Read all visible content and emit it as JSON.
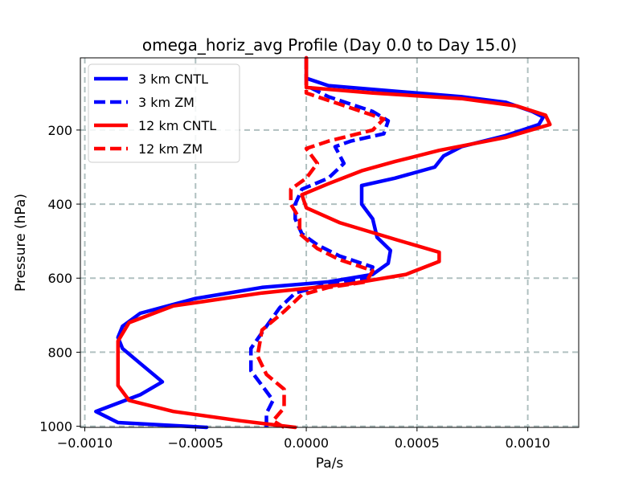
{
  "chart_data": {
    "type": "line",
    "title": "omega_horiz_avg Profile (Day 0.0 to Day 15.0)",
    "xlabel": "Pa/s",
    "ylabel": "Pressure (hPa)",
    "xlim": [
      -0.00102,
      0.00123
    ],
    "ylim": [
      1003,
      5
    ],
    "y_inverted": true,
    "grid": true,
    "legend_position": "top-left",
    "x_ticks": [
      -0.001,
      -0.0005,
      0.0,
      0.0005,
      0.001
    ],
    "x_tick_labels": [
      "−0.0010",
      "−0.0005",
      "0.0000",
      "0.0005",
      "0.0010"
    ],
    "y_ticks": [
      200,
      400,
      600,
      800,
      1000
    ],
    "y_tick_labels": [
      "200",
      "400",
      "600",
      "800",
      "1000"
    ],
    "series": [
      {
        "name": "3 km CNTL",
        "color": "#0000ff",
        "dash": "solid",
        "points": [
          [
            0.0,
            5
          ],
          [
            0.0,
            60
          ],
          [
            0.0001,
            80
          ],
          [
            0.0003,
            90
          ],
          [
            0.0007,
            110
          ],
          [
            0.0009,
            125
          ],
          [
            0.00102,
            150
          ],
          [
            0.00107,
            165
          ],
          [
            0.00105,
            185
          ],
          [
            0.0009,
            215
          ],
          [
            0.0007,
            245
          ],
          [
            0.00062,
            270
          ],
          [
            0.00058,
            300
          ],
          [
            0.0004,
            330
          ],
          [
            0.00025,
            350
          ],
          [
            0.00025,
            400
          ],
          [
            0.0003,
            440
          ],
          [
            0.00032,
            490
          ],
          [
            0.00038,
            525
          ],
          [
            0.00037,
            560
          ],
          [
            0.0003,
            590
          ],
          [
            0.0001,
            610
          ],
          [
            -0.0002,
            625
          ],
          [
            -0.0005,
            655
          ],
          [
            -0.00075,
            695
          ],
          [
            -0.00083,
            730
          ],
          [
            -0.00085,
            760
          ],
          [
            -0.00083,
            790
          ],
          [
            -0.00075,
            830
          ],
          [
            -0.00065,
            880
          ],
          [
            -0.00075,
            915
          ],
          [
            -0.00095,
            960
          ],
          [
            -0.00085,
            990
          ],
          [
            -0.00045,
            1003
          ]
        ]
      },
      {
        "name": "3 km ZM",
        "color": "#0000ff",
        "dash": "dashed",
        "points": [
          [
            0.0,
            5
          ],
          [
            0.0,
            80
          ],
          [
            0.0001,
            110
          ],
          [
            0.0002,
            130
          ],
          [
            0.0003,
            150
          ],
          [
            0.00037,
            175
          ],
          [
            0.00035,
            210
          ],
          [
            0.0002,
            230
          ],
          [
            0.00013,
            245
          ],
          [
            0.00017,
            290
          ],
          [
            0.0001,
            330
          ],
          [
            -2e-05,
            360
          ],
          [
            -5e-05,
            400
          ],
          [
            -5e-05,
            440
          ],
          [
            -2e-05,
            480
          ],
          [
            5e-05,
            510
          ],
          [
            0.00015,
            540
          ],
          [
            0.0003,
            570
          ],
          [
            0.00028,
            600
          ],
          [
            0.0001,
            615
          ],
          [
            -5e-05,
            640
          ],
          [
            -0.00012,
            680
          ],
          [
            -0.00018,
            730
          ],
          [
            -0.00025,
            790
          ],
          [
            -0.00025,
            850
          ],
          [
            -0.0002,
            890
          ],
          [
            -0.00015,
            930
          ],
          [
            -0.00018,
            965
          ],
          [
            -0.00018,
            1003
          ]
        ]
      },
      {
        "name": "12 km CNTL",
        "color": "#ff0000",
        "dash": "solid",
        "points": [
          [
            0.0,
            5
          ],
          [
            0.0,
            85
          ],
          [
            0.0003,
            100
          ],
          [
            0.0007,
            115
          ],
          [
            0.00095,
            135
          ],
          [
            0.00108,
            160
          ],
          [
            0.0011,
            185
          ],
          [
            0.0009,
            220
          ],
          [
            0.0006,
            255
          ],
          [
            0.0004,
            285
          ],
          [
            0.00025,
            310
          ],
          [
            0.0001,
            345
          ],
          [
            -2e-05,
            375
          ],
          [
            0.0,
            410
          ],
          [
            0.00015,
            450
          ],
          [
            0.0004,
            495
          ],
          [
            0.0006,
            530
          ],
          [
            0.0006,
            555
          ],
          [
            0.00045,
            590
          ],
          [
            0.0002,
            615
          ],
          [
            -0.0002,
            640
          ],
          [
            -0.0006,
            675
          ],
          [
            -0.0008,
            720
          ],
          [
            -0.00085,
            770
          ],
          [
            -0.00085,
            840
          ],
          [
            -0.00085,
            890
          ],
          [
            -0.0008,
            930
          ],
          [
            -0.0006,
            960
          ],
          [
            -0.0003,
            985
          ],
          [
            -5e-05,
            1003
          ]
        ]
      },
      {
        "name": "12 km ZM",
        "color": "#ff0000",
        "dash": "dashed",
        "points": [
          [
            0.0,
            5
          ],
          [
            0.0,
            100
          ],
          [
            0.0001,
            120
          ],
          [
            0.0002,
            140
          ],
          [
            0.00035,
            170
          ],
          [
            0.0003,
            200
          ],
          [
            0.0001,
            230
          ],
          [
            0.0,
            250
          ],
          [
            5e-05,
            290
          ],
          [
            0.0,
            330
          ],
          [
            -7e-05,
            360
          ],
          [
            -7e-05,
            400
          ],
          [
            -3e-05,
            440
          ],
          [
            -3e-05,
            480
          ],
          [
            5e-05,
            520
          ],
          [
            0.00015,
            550
          ],
          [
            0.0003,
            580
          ],
          [
            0.00027,
            610
          ],
          [
            0.0001,
            625
          ],
          [
            -2e-05,
            645
          ],
          [
            -0.0001,
            690
          ],
          [
            -0.0002,
            740
          ],
          [
            -0.00022,
            810
          ],
          [
            -0.00018,
            860
          ],
          [
            -0.0001,
            900
          ],
          [
            -0.0001,
            950
          ],
          [
            -0.00015,
            985
          ],
          [
            -0.0001,
            1003
          ]
        ]
      }
    ]
  }
}
